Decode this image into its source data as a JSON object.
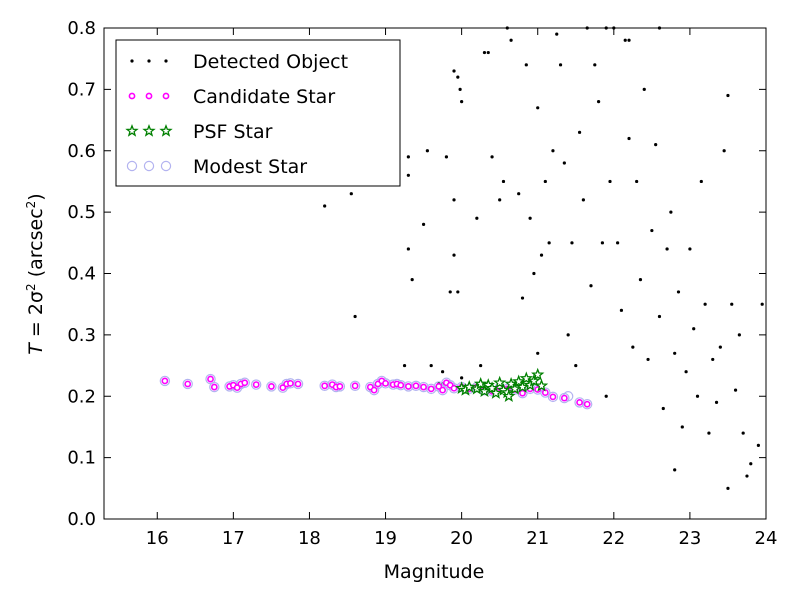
{
  "chart_data": {
    "type": "scatter",
    "title": "",
    "xlabel": "Magnitude",
    "ylabel_italic": "T",
    "ylabel_eq": " = 2σ",
    "ylabel_sup": "2",
    "ylabel_unit": " (arcsec",
    "ylabel_unit_sup": "2",
    "ylabel_close": ")",
    "xlim": [
      15.3,
      24
    ],
    "ylim": [
      0,
      0.8
    ],
    "xticks": [
      "16",
      "17",
      "18",
      "19",
      "20",
      "21",
      "22",
      "23",
      "24"
    ],
    "yticks": [
      "0.0",
      "0.1",
      "0.2",
      "0.3",
      "0.4",
      "0.5",
      "0.6",
      "0.7",
      "0.8"
    ],
    "legend_position": "top-left",
    "grid": false,
    "series": [
      {
        "name": "Detected Object",
        "marker": "dot",
        "color": "#000000",
        "points": [
          [
            18.2,
            0.51
          ],
          [
            18.6,
            0.33
          ],
          [
            18.55,
            0.53
          ],
          [
            19.25,
            0.25
          ],
          [
            19.6,
            0.21
          ],
          [
            19.75,
            0.22
          ],
          [
            20.0,
            0.23
          ],
          [
            19.75,
            0.24
          ],
          [
            19.3,
            0.59
          ],
          [
            19.3,
            0.56
          ],
          [
            19.3,
            0.44
          ],
          [
            19.35,
            0.39
          ],
          [
            19.5,
            0.48
          ],
          [
            19.55,
            0.6
          ],
          [
            19.6,
            0.25
          ],
          [
            19.7,
            0.22
          ],
          [
            19.8,
            0.59
          ],
          [
            19.85,
            0.37
          ],
          [
            19.9,
            0.73
          ],
          [
            19.95,
            0.72
          ],
          [
            19.98,
            0.7
          ],
          [
            19.9,
            0.52
          ],
          [
            19.9,
            0.43
          ],
          [
            19.95,
            0.37
          ],
          [
            20.0,
            0.68
          ],
          [
            20.2,
            0.49
          ],
          [
            20.25,
            0.25
          ],
          [
            20.3,
            0.76
          ],
          [
            20.35,
            0.76
          ],
          [
            20.4,
            0.59
          ],
          [
            20.5,
            0.52
          ],
          [
            20.6,
            0.8
          ],
          [
            20.55,
            0.55
          ],
          [
            20.65,
            0.78
          ],
          [
            20.75,
            0.53
          ],
          [
            20.8,
            0.36
          ],
          [
            20.85,
            0.74
          ],
          [
            20.9,
            0.49
          ],
          [
            20.95,
            0.4
          ],
          [
            21.0,
            0.27
          ],
          [
            21.0,
            0.67
          ],
          [
            21.05,
            0.43
          ],
          [
            21.1,
            0.55
          ],
          [
            21.15,
            0.45
          ],
          [
            21.2,
            0.6
          ],
          [
            21.25,
            0.79
          ],
          [
            21.3,
            0.74
          ],
          [
            21.35,
            0.58
          ],
          [
            21.4,
            0.3
          ],
          [
            21.45,
            0.45
          ],
          [
            21.5,
            0.25
          ],
          [
            21.55,
            0.63
          ],
          [
            21.6,
            0.52
          ],
          [
            21.65,
            0.8
          ],
          [
            21.7,
            0.38
          ],
          [
            21.75,
            0.74
          ],
          [
            21.8,
            0.68
          ],
          [
            21.85,
            0.45
          ],
          [
            21.9,
            0.2
          ],
          [
            21.95,
            0.55
          ],
          [
            22.0,
            0.8
          ],
          [
            22.05,
            0.45
          ],
          [
            22.1,
            0.34
          ],
          [
            22.15,
            0.78
          ],
          [
            22.2,
            0.62
          ],
          [
            22.25,
            0.28
          ],
          [
            22.3,
            0.55
          ],
          [
            22.35,
            0.39
          ],
          [
            22.4,
            0.7
          ],
          [
            22.45,
            0.26
          ],
          [
            22.5,
            0.47
          ],
          [
            22.55,
            0.61
          ],
          [
            22.6,
            0.33
          ],
          [
            22.65,
            0.18
          ],
          [
            22.7,
            0.44
          ],
          [
            22.75,
            0.5
          ],
          [
            22.8,
            0.27
          ],
          [
            22.85,
            0.37
          ],
          [
            22.9,
            0.15
          ],
          [
            22.95,
            0.24
          ],
          [
            23.0,
            0.44
          ],
          [
            23.05,
            0.31
          ],
          [
            23.1,
            0.2
          ],
          [
            23.15,
            0.55
          ],
          [
            23.2,
            0.35
          ],
          [
            23.25,
            0.14
          ],
          [
            23.3,
            0.26
          ],
          [
            23.35,
            0.19
          ],
          [
            23.4,
            0.28
          ],
          [
            23.45,
            0.6
          ],
          [
            23.5,
            0.69
          ],
          [
            23.55,
            0.35
          ],
          [
            23.6,
            0.21
          ],
          [
            23.65,
            0.3
          ],
          [
            23.7,
            0.14
          ],
          [
            23.75,
            0.07
          ],
          [
            23.8,
            0.09
          ],
          [
            23.9,
            0.12
          ],
          [
            23.95,
            0.35
          ],
          [
            22.8,
            0.08
          ],
          [
            23.5,
            0.05
          ],
          [
            22.2,
            0.78
          ],
          [
            22.6,
            0.8
          ],
          [
            21.9,
            0.8
          ]
        ]
      },
      {
        "name": "Candidate Star",
        "marker": "circle",
        "color": "#ff00ff",
        "points": [
          [
            16.1,
            0.225
          ],
          [
            16.4,
            0.22
          ],
          [
            16.7,
            0.228
          ],
          [
            16.75,
            0.215
          ],
          [
            16.95,
            0.216
          ],
          [
            17.0,
            0.218
          ],
          [
            17.05,
            0.214
          ],
          [
            17.1,
            0.22
          ],
          [
            17.15,
            0.222
          ],
          [
            17.3,
            0.219
          ],
          [
            17.5,
            0.216
          ],
          [
            17.65,
            0.214
          ],
          [
            17.7,
            0.22
          ],
          [
            17.75,
            0.221
          ],
          [
            17.85,
            0.22
          ],
          [
            18.2,
            0.217
          ],
          [
            18.3,
            0.219
          ],
          [
            18.35,
            0.215
          ],
          [
            18.4,
            0.216
          ],
          [
            18.6,
            0.217
          ],
          [
            18.8,
            0.215
          ],
          [
            18.85,
            0.21
          ],
          [
            18.9,
            0.22
          ],
          [
            18.95,
            0.225
          ],
          [
            19.0,
            0.221
          ],
          [
            19.1,
            0.219
          ],
          [
            19.15,
            0.22
          ],
          [
            19.2,
            0.218
          ],
          [
            19.3,
            0.216
          ],
          [
            19.4,
            0.217
          ],
          [
            19.5,
            0.215
          ],
          [
            19.6,
            0.212
          ],
          [
            19.7,
            0.216
          ],
          [
            19.75,
            0.21
          ],
          [
            19.8,
            0.222
          ],
          [
            19.85,
            0.218
          ],
          [
            19.9,
            0.213
          ],
          [
            20.0,
            0.215
          ],
          [
            20.1,
            0.212
          ],
          [
            20.2,
            0.215
          ],
          [
            20.3,
            0.21
          ],
          [
            20.4,
            0.208
          ],
          [
            20.5,
            0.214
          ],
          [
            20.6,
            0.212
          ],
          [
            20.7,
            0.211
          ],
          [
            20.8,
            0.205
          ],
          [
            20.9,
            0.212
          ],
          [
            21.0,
            0.211
          ],
          [
            21.1,
            0.206
          ],
          [
            21.2,
            0.199
          ],
          [
            21.35,
            0.197
          ],
          [
            21.55,
            0.19
          ],
          [
            21.65,
            0.187
          ]
        ]
      },
      {
        "name": "PSF Star",
        "marker": "star",
        "color": "#008000",
        "points": [
          [
            20.0,
            0.213
          ],
          [
            20.05,
            0.21
          ],
          [
            20.1,
            0.215
          ],
          [
            20.2,
            0.212
          ],
          [
            20.25,
            0.22
          ],
          [
            20.3,
            0.208
          ],
          [
            20.35,
            0.218
          ],
          [
            20.4,
            0.213
          ],
          [
            20.45,
            0.205
          ],
          [
            20.5,
            0.222
          ],
          [
            20.55,
            0.21
          ],
          [
            20.6,
            0.206
          ],
          [
            20.65,
            0.22
          ],
          [
            20.7,
            0.212
          ],
          [
            20.75,
            0.224
          ],
          [
            20.8,
            0.215
          ],
          [
            20.85,
            0.229
          ],
          [
            20.9,
            0.218
          ],
          [
            20.95,
            0.225
          ],
          [
            21.0,
            0.235
          ],
          [
            21.05,
            0.217
          ],
          [
            20.62,
            0.2
          ]
        ]
      },
      {
        "name": "Modest Star",
        "marker": "open-circle",
        "color": "#b3b3f0",
        "points": [
          [
            16.1,
            0.225
          ],
          [
            16.4,
            0.22
          ],
          [
            16.7,
            0.228
          ],
          [
            16.75,
            0.215
          ],
          [
            16.95,
            0.216
          ],
          [
            17.0,
            0.218
          ],
          [
            17.05,
            0.214
          ],
          [
            17.1,
            0.22
          ],
          [
            17.15,
            0.222
          ],
          [
            17.3,
            0.219
          ],
          [
            17.5,
            0.216
          ],
          [
            17.65,
            0.214
          ],
          [
            17.7,
            0.22
          ],
          [
            17.75,
            0.221
          ],
          [
            17.85,
            0.22
          ],
          [
            18.2,
            0.217
          ],
          [
            18.3,
            0.219
          ],
          [
            18.35,
            0.215
          ],
          [
            18.4,
            0.216
          ],
          [
            18.6,
            0.217
          ],
          [
            18.8,
            0.215
          ],
          [
            18.85,
            0.21
          ],
          [
            18.9,
            0.22
          ],
          [
            18.95,
            0.225
          ],
          [
            19.0,
            0.221
          ],
          [
            19.1,
            0.219
          ],
          [
            19.15,
            0.22
          ],
          [
            19.2,
            0.218
          ],
          [
            19.3,
            0.216
          ],
          [
            19.4,
            0.217
          ],
          [
            19.5,
            0.215
          ],
          [
            19.6,
            0.212
          ],
          [
            19.7,
            0.216
          ],
          [
            19.75,
            0.21
          ],
          [
            19.8,
            0.222
          ],
          [
            19.85,
            0.218
          ],
          [
            19.9,
            0.213
          ],
          [
            20.0,
            0.215
          ],
          [
            20.1,
            0.212
          ],
          [
            20.2,
            0.215
          ],
          [
            20.3,
            0.21
          ],
          [
            20.4,
            0.208
          ],
          [
            20.5,
            0.214
          ],
          [
            20.6,
            0.212
          ],
          [
            20.7,
            0.211
          ],
          [
            20.8,
            0.205
          ],
          [
            20.9,
            0.212
          ],
          [
            21.0,
            0.211
          ],
          [
            21.1,
            0.206
          ],
          [
            21.2,
            0.199
          ],
          [
            21.35,
            0.197
          ],
          [
            21.4,
            0.2
          ],
          [
            21.55,
            0.19
          ],
          [
            21.65,
            0.187
          ]
        ]
      }
    ]
  }
}
